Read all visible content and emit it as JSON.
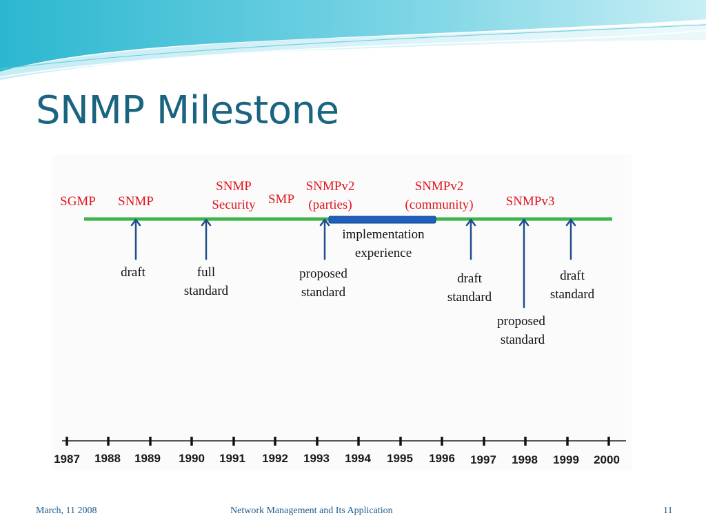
{
  "slide": {
    "title": "SNMP Milestone"
  },
  "diagram": {
    "milestones": [
      {
        "label": "SGMP"
      },
      {
        "label": "SNMP"
      },
      {
        "label_lines": [
          "SNMP",
          "Security"
        ]
      },
      {
        "label": "SMP"
      },
      {
        "label_lines": [
          "SNMPv2",
          "(parties)"
        ]
      },
      {
        "label_lines": [
          "SNMPv2",
          "(community)"
        ]
      },
      {
        "label": "SNMPv3"
      }
    ],
    "events": [
      {
        "lines": [
          "draft"
        ]
      },
      {
        "lines": [
          "full",
          "standard"
        ]
      },
      {
        "lines": [
          "proposed",
          "standard"
        ]
      },
      {
        "lines": [
          "draft",
          "standard"
        ]
      },
      {
        "lines": [
          "proposed",
          "standard"
        ]
      },
      {
        "lines": [
          "draft",
          "standard"
        ]
      }
    ],
    "implementation_note": [
      "implementation",
      "experience"
    ],
    "years": [
      "1987",
      "1988",
      "1989",
      "1990",
      "1991",
      "1992",
      "1993",
      "1994",
      "1995",
      "1996",
      "1997",
      "1998",
      "1999",
      "2000"
    ],
    "colors": {
      "timeline": "#3cb44a",
      "arrow": "#1f4e8c",
      "bar": "#1f5fbf",
      "label_red": "#e0141e"
    }
  },
  "footer": {
    "date": "March, 11 2008",
    "title": "Network Management and Its Application",
    "page": "11"
  }
}
